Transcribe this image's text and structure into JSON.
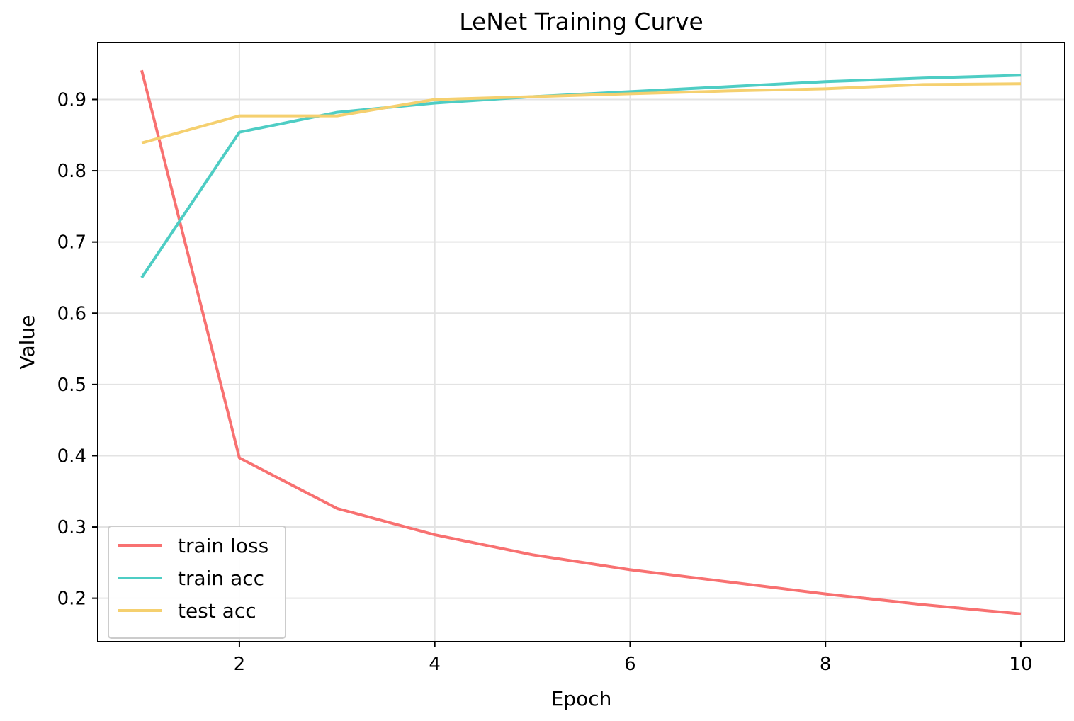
{
  "chart_data": {
    "type": "line",
    "title": "LeNet Training Curve",
    "xlabel": "Epoch",
    "ylabel": "Value",
    "x": [
      1,
      2,
      3,
      4,
      5,
      6,
      7,
      8,
      9,
      10
    ],
    "xlim": [
      0.55,
      10.45
    ],
    "ylim": [
      0.139,
      0.98
    ],
    "xticks": [
      2,
      4,
      6,
      8,
      10
    ],
    "yticks": [
      0.2,
      0.3,
      0.4,
      0.5,
      0.6,
      0.7,
      0.8,
      0.9
    ],
    "grid": true,
    "legend": {
      "placement": "lower-left"
    },
    "series": [
      {
        "name": "train loss",
        "color": "#f87171",
        "values": [
          0.941,
          0.397,
          0.326,
          0.289,
          0.261,
          0.24,
          0.223,
          0.206,
          0.191,
          0.178
        ]
      },
      {
        "name": "train acc",
        "color": "#4ecdc4",
        "values": [
          0.65,
          0.854,
          0.882,
          0.895,
          0.904,
          0.911,
          0.918,
          0.925,
          0.93,
          0.934
        ]
      },
      {
        "name": "test acc",
        "color": "#f5d06f",
        "values": [
          0.839,
          0.877,
          0.877,
          0.9,
          0.904,
          0.908,
          0.912,
          0.915,
          0.921,
          0.922
        ]
      }
    ]
  }
}
